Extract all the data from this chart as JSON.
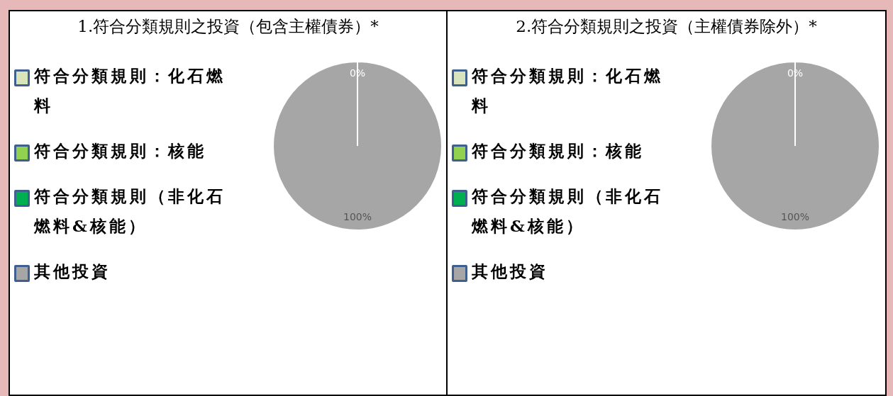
{
  "chart_data": [
    {
      "type": "pie",
      "title": "1.符合分類規則之投資（包含主權債券）*",
      "categories": [
        "符合分類規則：化石燃料",
        "符合分類規則：核能",
        "符合分類規則（非化石燃料&核能）",
        "其他投資"
      ],
      "values": [
        0,
        0,
        0,
        100
      ],
      "colors": [
        "#d8e4bc",
        "#92d050",
        "#00b050",
        "#a6a6a6"
      ],
      "value_labels": [
        "0%",
        null,
        null,
        "100%"
      ],
      "legend": "left"
    },
    {
      "type": "pie",
      "title": "2.符合分類規則之投資（主權債券除外）*",
      "categories": [
        "符合分類規則：化石燃料",
        "符合分類規則：核能",
        "符合分類規則（非化石燃料&核能）",
        "其他投資"
      ],
      "values": [
        0,
        0,
        0,
        100
      ],
      "colors": [
        "#d8e4bc",
        "#92d050",
        "#00b050",
        "#a6a6a6"
      ],
      "value_labels": [
        "0%",
        null,
        null,
        "100%"
      ],
      "legend": "left"
    }
  ]
}
